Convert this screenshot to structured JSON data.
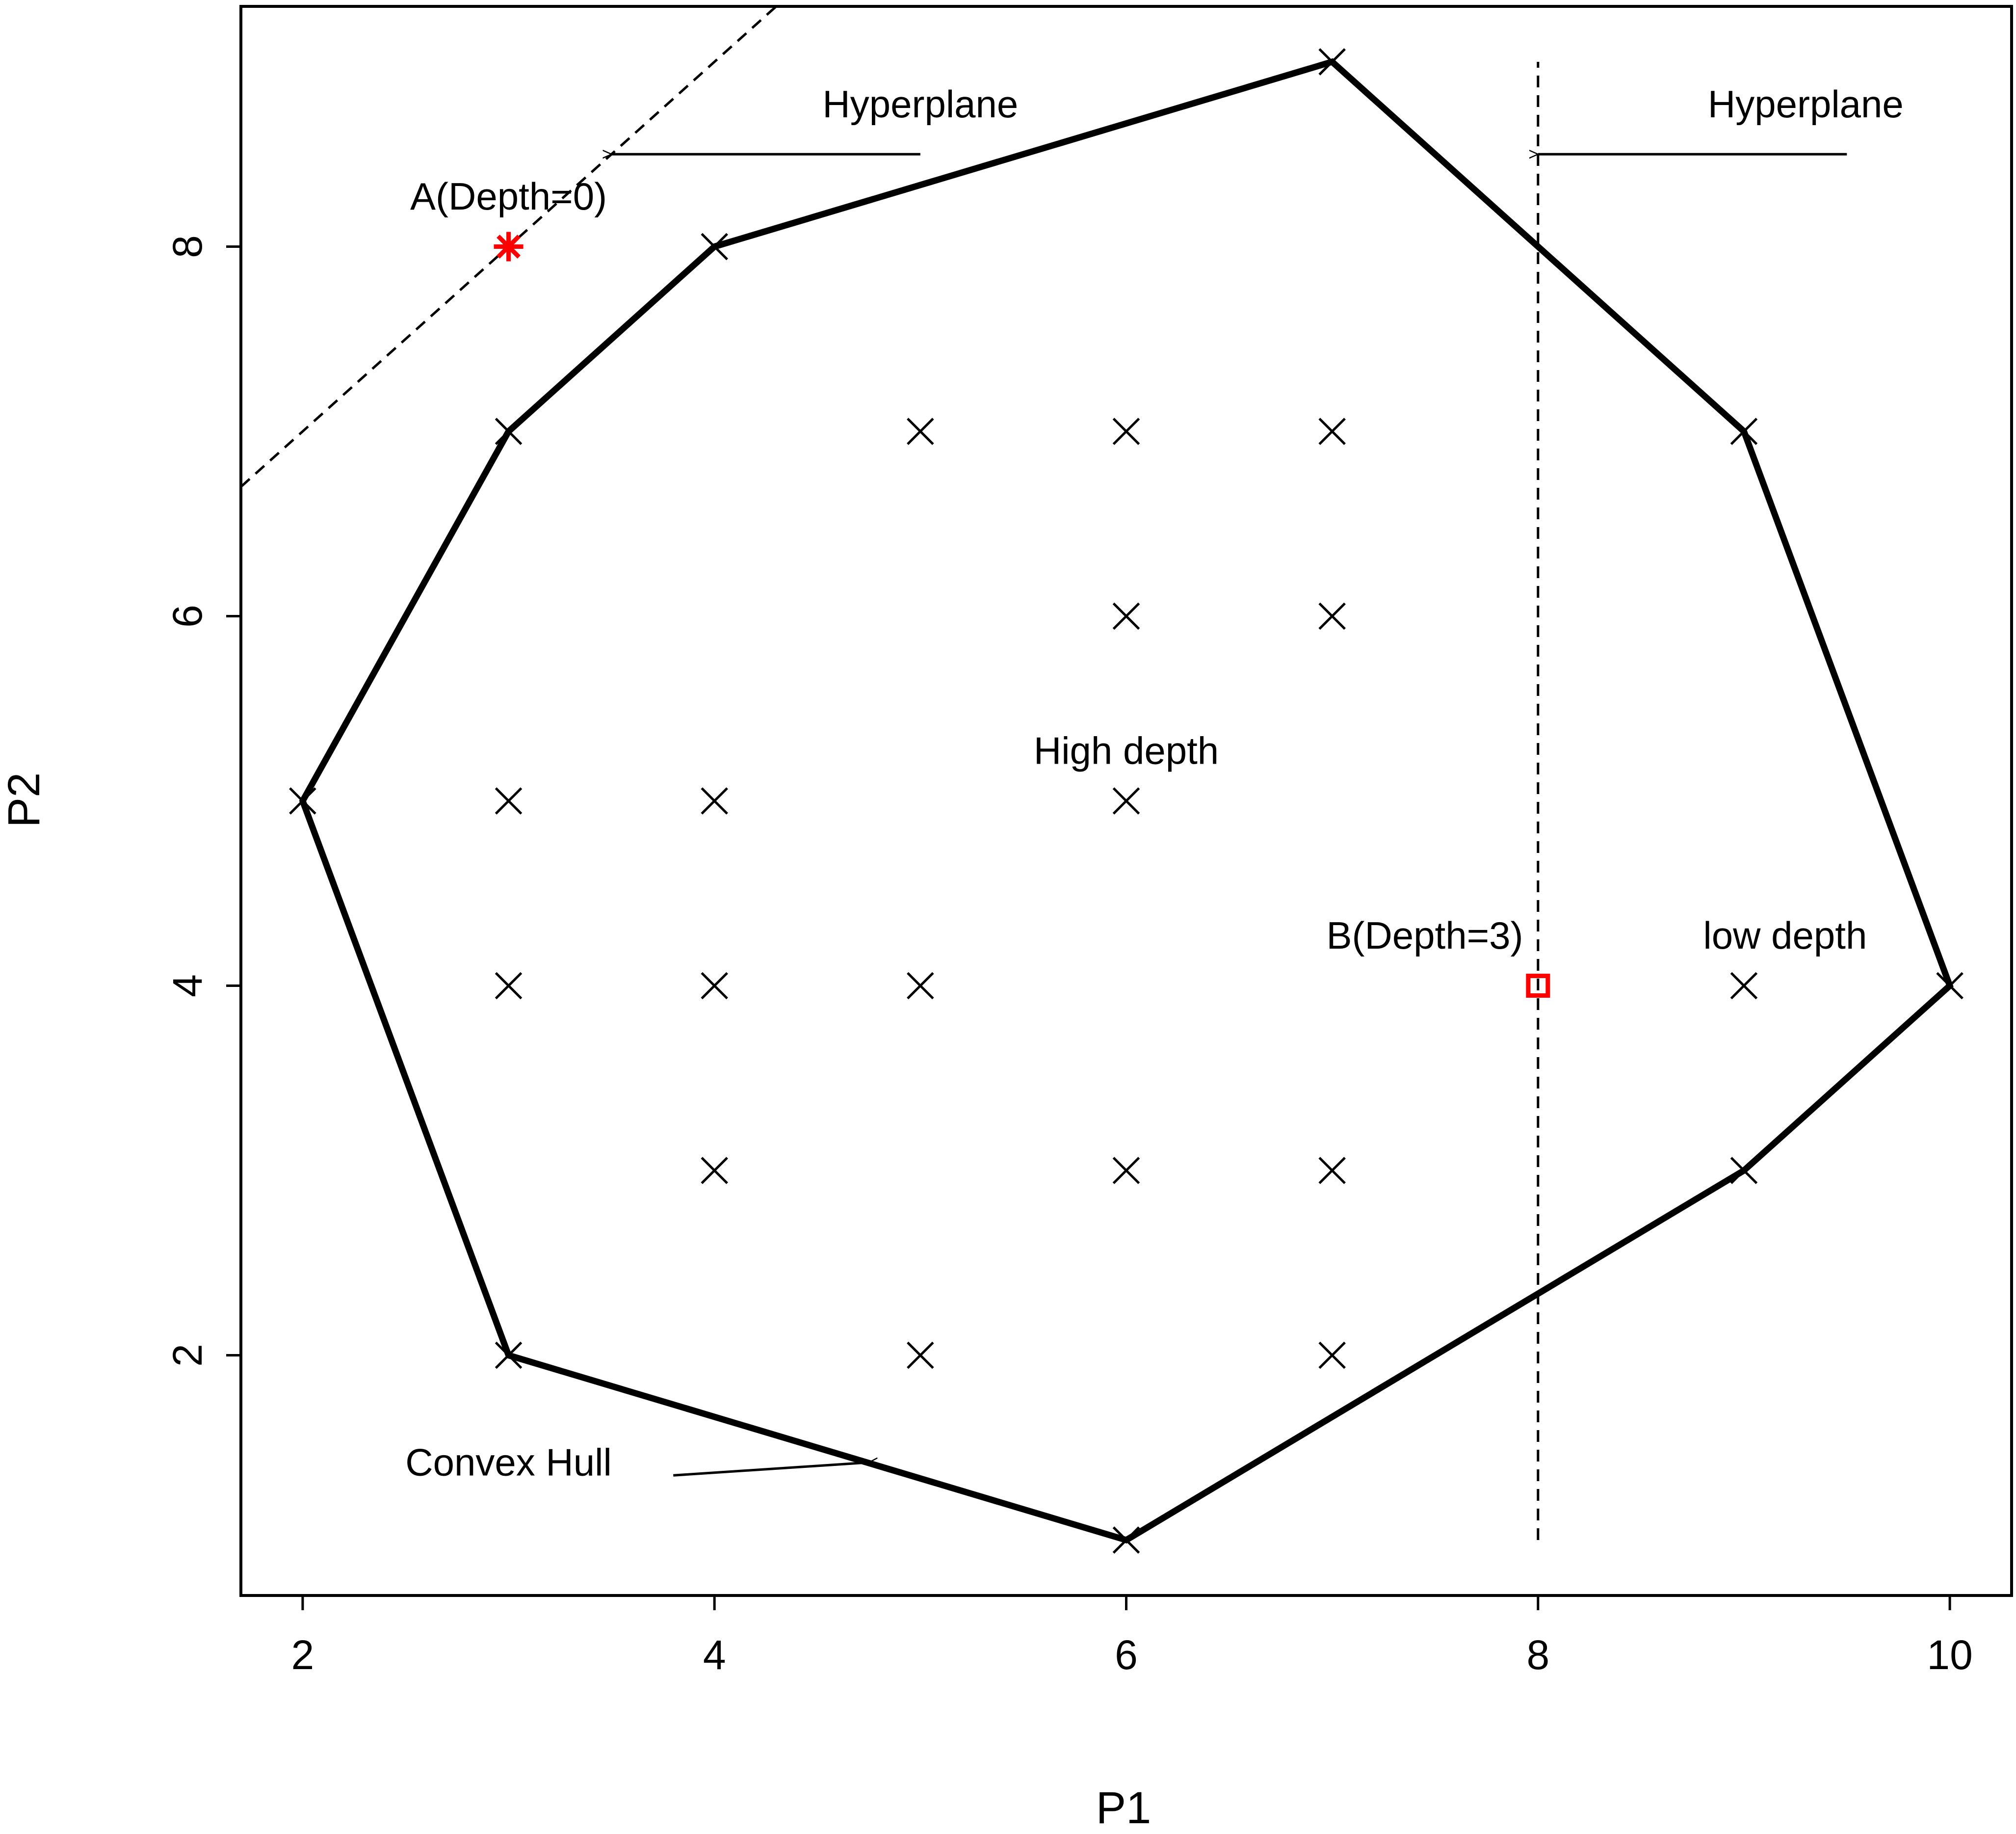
{
  "chart_data": {
    "type": "scatter",
    "title": "",
    "xlabel": "P1",
    "ylabel": "P2",
    "xlim": [
      1.7,
      10.3
    ],
    "ylim": [
      0.7,
      9.3
    ],
    "x_ticks": [
      2,
      4,
      6,
      8,
      10
    ],
    "y_ticks": [
      2,
      4,
      6,
      8
    ],
    "grid": false,
    "legend": "none",
    "points": [
      {
        "x": 5,
        "y": 7
      },
      {
        "x": 6,
        "y": 7
      },
      {
        "x": 7,
        "y": 7
      },
      {
        "x": 6,
        "y": 6
      },
      {
        "x": 7,
        "y": 6
      },
      {
        "x": 3,
        "y": 5
      },
      {
        "x": 4,
        "y": 5
      },
      {
        "x": 6,
        "y": 5
      },
      {
        "x": 3,
        "y": 4
      },
      {
        "x": 4,
        "y": 4
      },
      {
        "x": 5,
        "y": 4
      },
      {
        "x": 9,
        "y": 4
      },
      {
        "x": 4,
        "y": 3
      },
      {
        "x": 6,
        "y": 3
      },
      {
        "x": 7,
        "y": 3
      },
      {
        "x": 5,
        "y": 2
      },
      {
        "x": 7,
        "y": 2
      }
    ],
    "hull": [
      {
        "x": 7,
        "y": 9
      },
      {
        "x": 9,
        "y": 7
      },
      {
        "x": 10,
        "y": 4
      },
      {
        "x": 9,
        "y": 3
      },
      {
        "x": 6,
        "y": 1
      },
      {
        "x": 3,
        "y": 2
      },
      {
        "x": 2,
        "y": 5
      },
      {
        "x": 3,
        "y": 7
      },
      {
        "x": 4,
        "y": 8
      }
    ],
    "special_points": [
      {
        "label": "A(Depth=0)",
        "x": 3,
        "y": 8,
        "marker": "asterisk",
        "color": "#ff0000"
      },
      {
        "label": "B(Depth=3)",
        "x": 8,
        "y": 4,
        "marker": "square",
        "color": "#ff0000"
      }
    ],
    "hyperplanes": [
      {
        "from": {
          "x": 1.7,
          "y": 6.7
        },
        "to": {
          "x": 4.3,
          "y": 9.3
        },
        "style": "dashed"
      },
      {
        "from": {
          "x": 8,
          "y": 1
        },
        "to": {
          "x": 8,
          "y": 9
        },
        "style": "dashed"
      }
    ],
    "annotations": [
      {
        "id": "hyperplane-left",
        "text": "Hyperplane",
        "x": 5.0,
        "y": 8.7,
        "arrow_from": {
          "x": 5.0,
          "y": 8.5
        },
        "arrow_to": {
          "x": 3.5,
          "y": 8.5
        }
      },
      {
        "id": "hyperplane-right",
        "text": "Hyperplane",
        "x": 9.3,
        "y": 8.7,
        "arrow_from": {
          "x": 9.5,
          "y": 8.5
        },
        "arrow_to": {
          "x": 8.0,
          "y": 8.5
        }
      },
      {
        "id": "label-a",
        "text": "A(Depth=0)",
        "x": 3.0,
        "y": 8.2
      },
      {
        "id": "label-high-depth",
        "text": "High depth",
        "x": 6.0,
        "y": 5.2
      },
      {
        "id": "label-b",
        "text": "B(Depth=3)",
        "x": 7.45,
        "y": 4.2
      },
      {
        "id": "label-low-depth",
        "text": "low depth",
        "x": 9.2,
        "y": 4.2
      },
      {
        "id": "label-convex-hull",
        "text": "Convex Hull",
        "x": 3.0,
        "y": 1.35,
        "arrow_from": {
          "x": 3.8,
          "y": 1.35
        },
        "arrow_to": {
          "x": 4.75,
          "y": 1.42
        }
      }
    ]
  }
}
